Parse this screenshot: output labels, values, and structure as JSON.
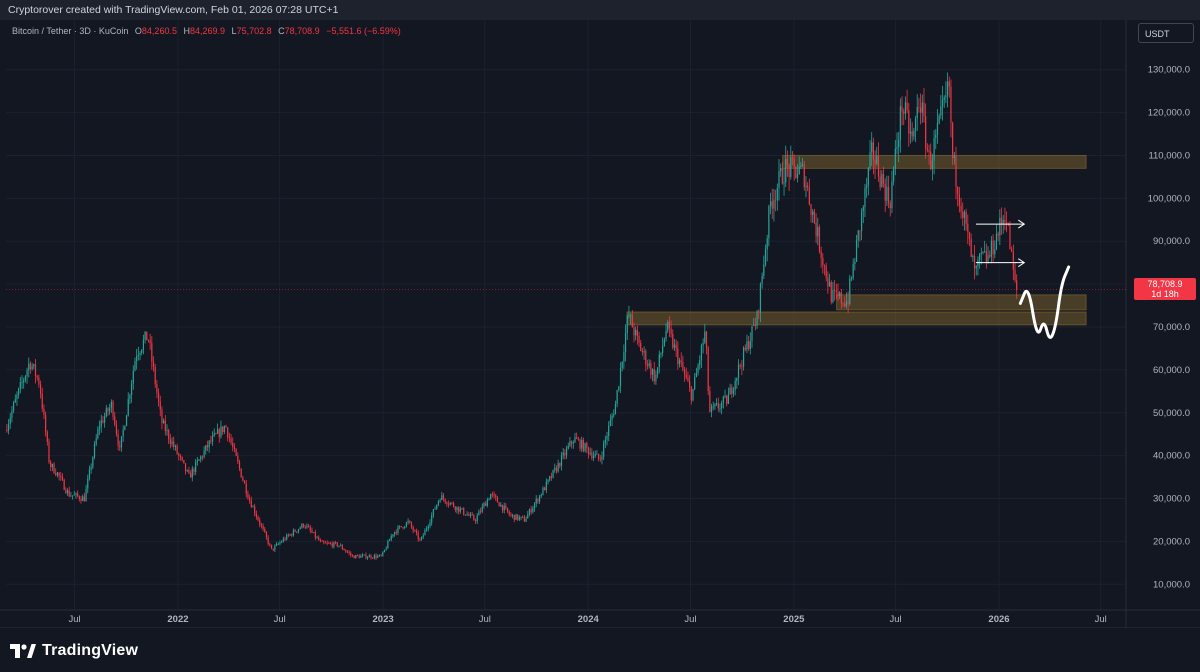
{
  "header": {
    "created_by": "Cryptorover created with TradingView.com, Feb 01, 2026 07:28 UTC+1"
  },
  "symbol": {
    "title": "Bitcoin / Tether · 3D · KuCoin",
    "open_label": "O",
    "open": "84,260.5",
    "high_label": "H",
    "high": "84,269.9",
    "low_label": "L",
    "low": "75,702.8",
    "close_label": "C",
    "close": "78,708.9",
    "change": "−5,551.6 (−6.59%)"
  },
  "currency_button": "USDT",
  "last_price": {
    "price": "78,708.9",
    "countdown": "1d 18h"
  },
  "brand": {
    "name": "TradingView"
  },
  "colors": {
    "background": "#131722",
    "up": "#26a69a",
    "down": "#f23645",
    "zone": "#8a6d2f",
    "drawing": "#ffffff"
  },
  "chart_data": {
    "type": "candlestick",
    "symbol": "BTCUSDT",
    "interval": "3D",
    "y_axis": {
      "min": 4000,
      "max": 136000,
      "ticks": [
        10000,
        20000,
        30000,
        40000,
        50000,
        60000,
        70000,
        80000,
        90000,
        100000,
        110000,
        120000,
        130000
      ],
      "tick_labels": [
        "10,000.0",
        "20,000.0",
        "30,000.0",
        "40,000.0",
        "50,000.0",
        "60,000.0",
        "70,000.0",
        "80,000.0",
        "90,000.0",
        "100,000.0",
        "110,000.0",
        "120,000.0",
        "130,000.0"
      ]
    },
    "x_axis": {
      "range": [
        "2021-03-01",
        "2026-08-15"
      ],
      "ticks": [
        {
          "date": "2021-07-01",
          "label": "Jul",
          "bold": false
        },
        {
          "date": "2022-01-01",
          "label": "2022",
          "bold": true
        },
        {
          "date": "2022-07-01",
          "label": "Jul",
          "bold": false
        },
        {
          "date": "2023-01-01",
          "label": "2023",
          "bold": true
        },
        {
          "date": "2023-07-01",
          "label": "Jul",
          "bold": false
        },
        {
          "date": "2024-01-01",
          "label": "2024",
          "bold": true
        },
        {
          "date": "2024-07-01",
          "label": "Jul",
          "bold": false
        },
        {
          "date": "2025-01-01",
          "label": "2025",
          "bold": true
        },
        {
          "date": "2025-07-01",
          "label": "Jul",
          "bold": false
        },
        {
          "date": "2026-01-01",
          "label": "2026",
          "bold": true
        },
        {
          "date": "2026-07-01",
          "label": "Jul",
          "bold": false
        }
      ]
    },
    "price_path": [
      [
        "2021-03-01",
        46000
      ],
      [
        "2021-04-14",
        62000
      ],
      [
        "2021-05-01",
        57000
      ],
      [
        "2021-05-19",
        38000
      ],
      [
        "2021-06-01",
        36000
      ],
      [
        "2021-06-22",
        31000
      ],
      [
        "2021-07-20",
        30000
      ],
      [
        "2021-08-15",
        47000
      ],
      [
        "2021-09-07",
        52000
      ],
      [
        "2021-09-21",
        41000
      ],
      [
        "2021-10-20",
        64000
      ],
      [
        "2021-11-10",
        68000
      ],
      [
        "2021-12-04",
        48000
      ],
      [
        "2022-01-22",
        35000
      ],
      [
        "2022-02-28",
        43000
      ],
      [
        "2022-03-28",
        47000
      ],
      [
        "2022-05-09",
        30000
      ],
      [
        "2022-06-18",
        18000
      ],
      [
        "2022-07-10",
        20500
      ],
      [
        "2022-08-15",
        24000
      ],
      [
        "2022-09-15",
        19500
      ],
      [
        "2022-10-15",
        19200
      ],
      [
        "2022-11-09",
        16500
      ],
      [
        "2022-12-31",
        16500
      ],
      [
        "2023-01-20",
        22000
      ],
      [
        "2023-02-16",
        24500
      ],
      [
        "2023-03-10",
        20000
      ],
      [
        "2023-04-14",
        30500
      ],
      [
        "2023-06-15",
        25000
      ],
      [
        "2023-07-13",
        31000
      ],
      [
        "2023-08-17",
        26000
      ],
      [
        "2023-09-11",
        25000
      ],
      [
        "2023-10-24",
        34000
      ],
      [
        "2023-12-08",
        44000
      ],
      [
        "2024-01-23",
        39000
      ],
      [
        "2024-02-20",
        52000
      ],
      [
        "2024-03-14",
        73000
      ],
      [
        "2024-04-01",
        66000
      ],
      [
        "2024-05-01",
        58000
      ],
      [
        "2024-05-21",
        70000
      ],
      [
        "2024-07-05",
        54000
      ],
      [
        "2024-07-29",
        69000
      ],
      [
        "2024-08-05",
        50000
      ],
      [
        "2024-09-06",
        53000
      ],
      [
        "2024-10-29",
        72000
      ],
      [
        "2024-11-22",
        99000
      ],
      [
        "2024-12-17",
        107000
      ],
      [
        "2025-01-20",
        106000
      ],
      [
        "2025-02-26",
        84000
      ],
      [
        "2025-03-11",
        77000
      ],
      [
        "2025-04-08",
        76000
      ],
      [
        "2025-05-22",
        111000
      ],
      [
        "2025-06-22",
        99000
      ],
      [
        "2025-07-14",
        122000
      ],
      [
        "2025-08-02",
        113000
      ],
      [
        "2025-08-14",
        124000
      ],
      [
        "2025-09-01",
        108000
      ],
      [
        "2025-10-06",
        126000
      ],
      [
        "2025-10-11",
        110000
      ],
      [
        "2025-11-21",
        82000
      ],
      [
        "2025-12-01",
        86000
      ],
      [
        "2025-12-15",
        86000
      ],
      [
        "2026-01-14",
        97000
      ],
      [
        "2026-01-25",
        86000
      ],
      [
        "2026-02-01",
        78708.9
      ]
    ],
    "zones": [
      {
        "start": "2024-12-12",
        "end": "2026-06-05",
        "low": 107000,
        "high": 110000
      },
      {
        "start": "2025-03-18",
        "end": "2026-06-05",
        "low": 74000,
        "high": 77500
      },
      {
        "start": "2024-03-10",
        "end": "2026-06-05",
        "low": 70500,
        "high": 73500
      }
    ],
    "arrows": [
      {
        "start": "2025-11-21",
        "end": "2026-02-15",
        "price": 94000
      },
      {
        "start": "2025-11-21",
        "end": "2026-02-15",
        "price": 85000
      }
    ],
    "drawing_path": [
      [
        "2026-02-08",
        75500
      ],
      [
        "2026-02-22",
        80000
      ],
      [
        "2026-03-10",
        67000
      ],
      [
        "2026-03-22",
        72000
      ],
      [
        "2026-04-01",
        66500
      ],
      [
        "2026-04-12",
        70000
      ],
      [
        "2026-04-22",
        80000
      ],
      [
        "2026-05-05",
        84000
      ]
    ],
    "last_price": 78708.9,
    "legend": {
      "title": "Bitcoin / Tether · 3D · KuCoin",
      "open": 84260.5,
      "high": 84269.9,
      "low": 75702.8,
      "close": 78708.9,
      "change": -5551.6,
      "change_pct": -6.59
    }
  }
}
